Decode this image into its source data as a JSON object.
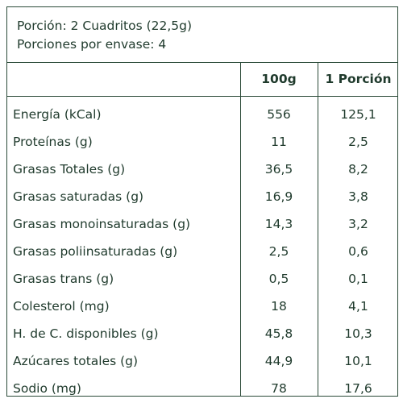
{
  "header": {
    "serving": "Porción: 2 Cuadritos (22,5g)",
    "servings_per_package": "Porciones por envase: 4"
  },
  "columns": {
    "per100": "100g",
    "perServing": "1 Porción"
  },
  "rows": [
    {
      "label": "Energía (kCal)",
      "per100": "556",
      "perServing": "125,1"
    },
    {
      "label": "Proteínas (g)",
      "per100": "11",
      "perServing": "2,5"
    },
    {
      "label": "Grasas Totales (g)",
      "per100": "36,5",
      "perServing": "8,2"
    },
    {
      "label": "Grasas saturadas (g)",
      "per100": "16,9",
      "perServing": "3,8"
    },
    {
      "label": "Grasas monoinsaturadas (g)",
      "per100": "14,3",
      "perServing": "3,2"
    },
    {
      "label": "Grasas poliinsaturadas (g)",
      "per100": "2,5",
      "perServing": "0,6"
    },
    {
      "label": "Grasas trans (g)",
      "per100": "0,5",
      "perServing": "0,1"
    },
    {
      "label": "Colesterol (mg)",
      "per100": "18",
      "perServing": "4,1"
    },
    {
      "label": "H. de C. disponibles (g)",
      "per100": "45,8",
      "perServing": "10,3"
    },
    {
      "label": "Azúcares totales (g)",
      "per100": "44,9",
      "perServing": "10,1"
    },
    {
      "label": "Sodio (mg)",
      "per100": "78",
      "perServing": "17,6"
    }
  ]
}
